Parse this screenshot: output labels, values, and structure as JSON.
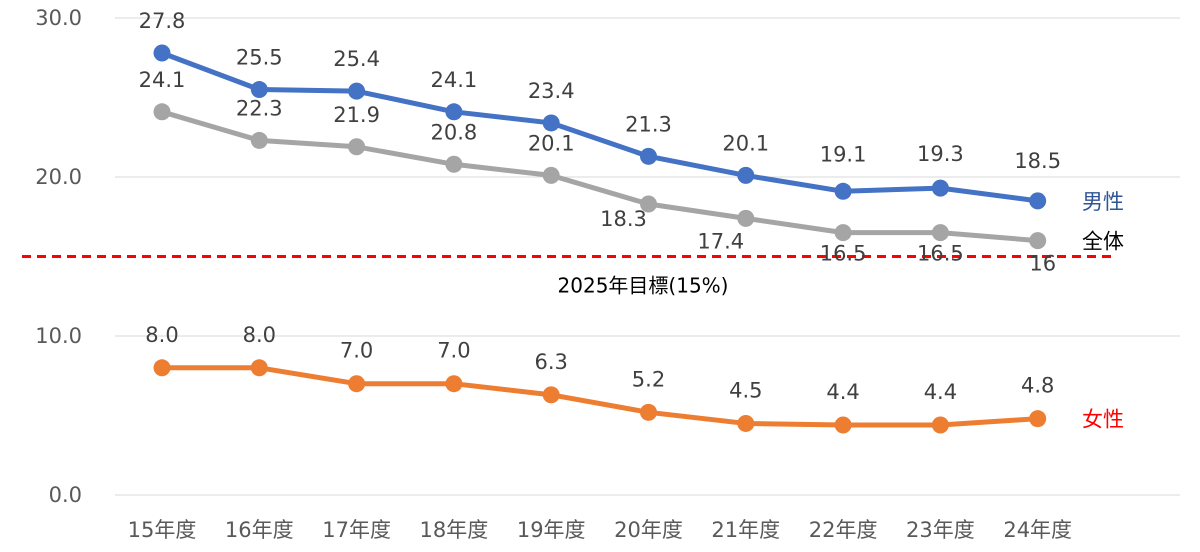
{
  "chart_data": {
    "type": "line",
    "title": "",
    "xlabel": "",
    "ylabel": "",
    "ylim": [
      0,
      30
    ],
    "yticks": [
      "0.0",
      "10.0",
      "20.0",
      "30.0"
    ],
    "grid": true,
    "legend": "inline-right",
    "categories": [
      "15年度",
      "16年度",
      "17年度",
      "18年度",
      "19年度",
      "20年度",
      "21年度",
      "22年度",
      "23年度",
      "24年度"
    ],
    "series": [
      {
        "name": "男性",
        "color": "#4472C4",
        "label_color": "#2F5597",
        "values": [
          27.8,
          25.5,
          25.4,
          24.1,
          23.4,
          21.3,
          20.1,
          19.1,
          19.3,
          18.5
        ],
        "labels": [
          "27.8",
          "25.5",
          "25.4",
          "24.1",
          "23.4",
          "21.3",
          "20.1",
          "19.1",
          "19.3",
          "18.5"
        ]
      },
      {
        "name": "全体",
        "color": "#A5A5A5",
        "label_color": "#000000",
        "values": [
          24.1,
          22.3,
          21.9,
          20.8,
          20.1,
          18.3,
          17.4,
          16.5,
          16.5,
          16
        ],
        "labels": [
          "24.1",
          "22.3",
          "21.9",
          "20.8",
          "20.1",
          "18.3",
          "17.4",
          "16.5",
          "16.5",
          "16"
        ]
      },
      {
        "name": "女性",
        "color": "#ED7D31",
        "label_color": "#FF0000",
        "values": [
          8.0,
          8.0,
          7.0,
          7.0,
          6.3,
          5.2,
          4.5,
          4.4,
          4.4,
          4.8
        ],
        "labels": [
          "8.0",
          "8.0",
          "7.0",
          "7.0",
          "6.3",
          "5.2",
          "4.5",
          "4.4",
          "4.4",
          "4.8"
        ]
      }
    ],
    "target": {
      "value": 15,
      "label": "2025年目標(15%)",
      "color": "#FF0000",
      "style": "dashed"
    }
  }
}
